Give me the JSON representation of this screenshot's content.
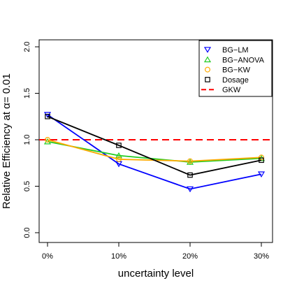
{
  "chart_data": {
    "type": "line",
    "title": "",
    "xlabel": "uncertainty level",
    "ylabel": "Relative Efficiency at  α= 0.01",
    "categories": [
      "0%",
      "10%",
      "20%",
      "30%"
    ],
    "ylim": [
      0.0,
      2.0
    ],
    "yticks": [
      "0.0",
      "0.5",
      "1.0",
      "1.5",
      "2.0"
    ],
    "grid": false,
    "legend_position": "top-right",
    "series": [
      {
        "name": "BG−LM",
        "values": [
          1.27,
          0.74,
          0.47,
          0.63
        ],
        "color": "#0000ff",
        "marker": "triangle-down"
      },
      {
        "name": "BG−ANOVA",
        "values": [
          0.98,
          0.83,
          0.76,
          0.8
        ],
        "color": "#22cc22",
        "marker": "triangle-up"
      },
      {
        "name": "BG−KW",
        "values": [
          1.0,
          0.79,
          0.77,
          0.81
        ],
        "color": "#ffaa00",
        "marker": "circle"
      },
      {
        "name": "Dosage",
        "values": [
          1.25,
          0.94,
          0.62,
          0.78
        ],
        "color": "#000000",
        "marker": "square"
      }
    ],
    "reference_line": {
      "name": "GKW",
      "value": 1.0,
      "color": "#ff0000",
      "style": "dashed"
    }
  }
}
